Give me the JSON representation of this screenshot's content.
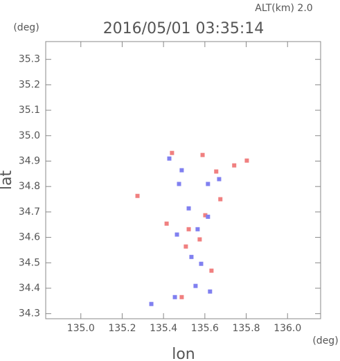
{
  "chart_data": {
    "type": "scatter",
    "title": "2016/05/01 03:35:14",
    "annotation": "ALT(km) 2.0",
    "y_unit": "(deg)",
    "x_unit": "(deg)",
    "xlabel": "lon",
    "ylabel": "lat",
    "xlim": [
      134.83,
      136.16
    ],
    "ylim": [
      34.28,
      35.37
    ],
    "xticks": [
      {
        "value": 135,
        "label": "135.0"
      },
      135.2,
      135.4,
      135.6,
      135.8,
      {
        "value": 136,
        "label": "136.0"
      }
    ],
    "yticks": [
      34.3,
      34.4,
      34.5,
      34.6,
      34.7,
      34.8,
      34.9,
      {
        "value": 35,
        "label": "35.0"
      },
      35.1,
      35.2,
      35.3
    ],
    "series": [
      {
        "color": "#f08080",
        "x": [
          135.441,
          135.589,
          135.742,
          135.803,
          135.274,
          135.675,
          135.415,
          135.522,
          135.602,
          135.575,
          135.508,
          135.632,
          135.488,
          135.655
        ],
        "y": [
          34.932,
          34.924,
          34.883,
          34.902,
          34.763,
          34.75,
          34.654,
          34.632,
          34.687,
          34.592,
          34.564,
          34.469,
          34.365,
          34.859
        ]
      },
      {
        "color": "#8080f0",
        "x": [
          135.428,
          135.488,
          135.475,
          135.615,
          135.669,
          135.522,
          135.615,
          135.465,
          135.565,
          135.535,
          135.582,
          135.555,
          135.455,
          135.341,
          135.625
        ],
        "y": [
          34.91,
          34.864,
          34.81,
          34.81,
          34.829,
          34.714,
          34.681,
          34.611,
          34.632,
          34.523,
          34.496,
          34.409,
          34.365,
          34.338,
          34.387
        ]
      }
    ]
  }
}
